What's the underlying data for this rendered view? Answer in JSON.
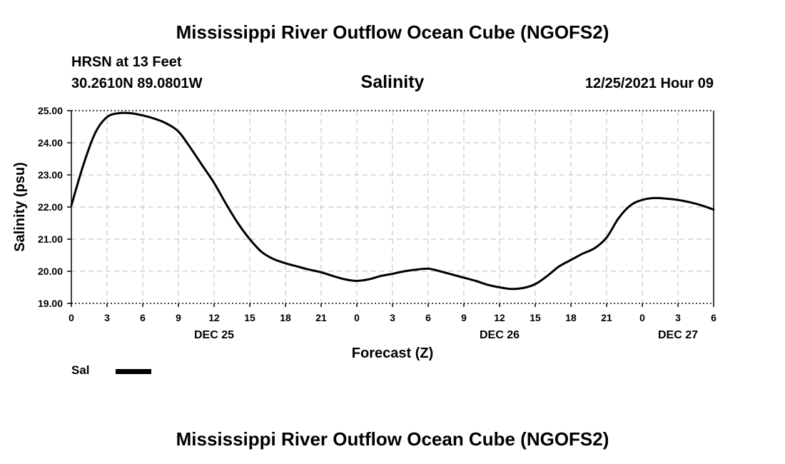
{
  "header": {
    "title": "Mississippi River Outflow Ocean Cube (NGOFS2)",
    "station": "HRSN at 13 Feet",
    "coords": "30.2610N  89.0801W",
    "timestamp": "12/25/2021 Hour 09"
  },
  "footer": {
    "title": "Mississippi River Outflow Ocean Cube (NGOFS2)"
  },
  "chart_data": {
    "type": "line",
    "title": "Salinity",
    "xlabel": "Forecast (Z)",
    "ylabel": "Salinity (psu)",
    "xlim": [
      0,
      54
    ],
    "ylim": [
      19,
      25
    ],
    "y_ticks": [
      "19.00",
      "20.00",
      "21.00",
      "22.00",
      "23.00",
      "24.00",
      "25.00"
    ],
    "x_tick_labels": [
      "0",
      "3",
      "6",
      "9",
      "12",
      "15",
      "18",
      "21",
      "0",
      "3",
      "6",
      "9",
      "12",
      "15",
      "18",
      "21",
      "0",
      "3",
      "6"
    ],
    "date_labels": [
      {
        "label": "DEC 25",
        "hour": 12
      },
      {
        "label": "DEC 26",
        "hour": 36
      },
      {
        "label": "DEC 27",
        "hour": 51
      }
    ],
    "grid": true,
    "legend": [
      {
        "name": "Sal",
        "color": "#000000"
      }
    ],
    "series": [
      {
        "name": "Sal",
        "color": "#000000",
        "x": [
          0,
          1,
          2,
          3,
          4,
          5,
          6,
          7,
          8,
          9,
          10,
          11,
          12,
          13,
          14,
          15,
          16,
          17,
          18,
          19,
          20,
          21,
          22,
          23,
          24,
          25,
          26,
          27,
          28,
          29,
          30,
          31,
          32,
          33,
          34,
          35,
          36,
          37,
          38,
          39,
          40,
          41,
          42,
          43,
          44,
          45,
          46,
          47,
          48,
          49,
          50,
          51,
          52,
          53,
          54
        ],
        "y": [
          22.05,
          23.3,
          24.3,
          24.8,
          24.92,
          24.92,
          24.85,
          24.75,
          24.6,
          24.35,
          23.85,
          23.3,
          22.75,
          22.1,
          21.5,
          21.0,
          20.6,
          20.38,
          20.25,
          20.15,
          20.05,
          19.97,
          19.85,
          19.75,
          19.7,
          19.75,
          19.85,
          19.92,
          20.0,
          20.05,
          20.08,
          20.0,
          19.9,
          19.8,
          19.7,
          19.58,
          19.5,
          19.45,
          19.48,
          19.6,
          19.85,
          20.15,
          20.35,
          20.55,
          20.72,
          21.05,
          21.65,
          22.05,
          22.22,
          22.28,
          22.26,
          22.22,
          22.15,
          22.05,
          21.92
        ]
      }
    ]
  }
}
